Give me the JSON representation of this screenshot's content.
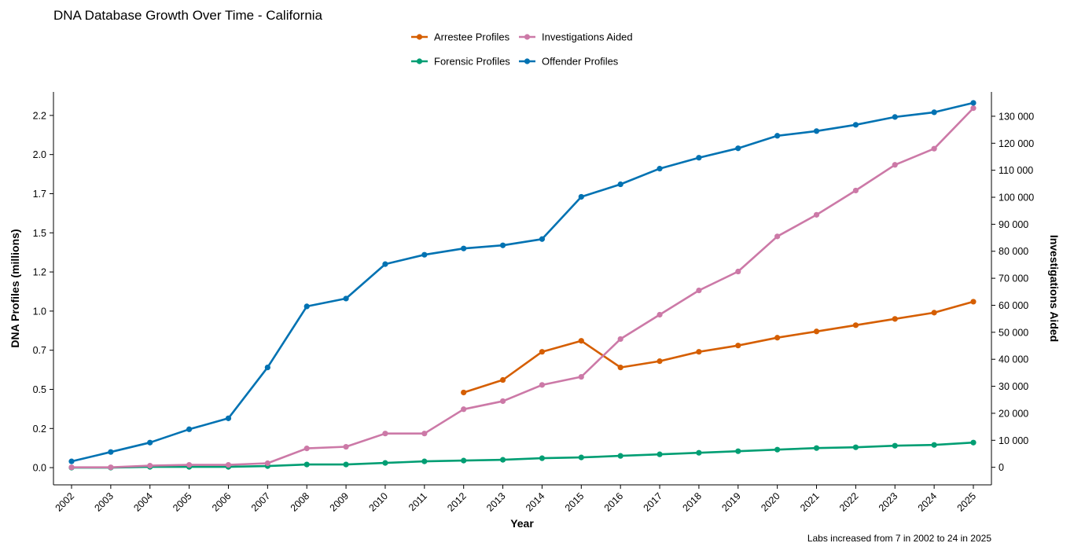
{
  "chart_data": {
    "type": "line",
    "title": "DNA Database Growth Over Time - California",
    "xlabel": "Year",
    "ylabel": "DNA Profiles (millions)",
    "y2label": "Investigations Aided",
    "caption": "Labs increased from 7 in 2002 to 24 in 2025",
    "x": [
      "2002",
      "2003",
      "2004",
      "2005",
      "2006",
      "2007",
      "2008",
      "2009",
      "2010",
      "2011",
      "2012",
      "2013",
      "2014",
      "2015",
      "2016",
      "2017",
      "2018",
      "2019",
      "2020",
      "2021",
      "2022",
      "2023",
      "2024",
      "2025"
    ],
    "ylim": [
      -0.11,
      2.4
    ],
    "y2lim": [
      -6500,
      139000
    ],
    "yticks": [
      0.0,
      0.25,
      0.5,
      0.75,
      1.0,
      1.25,
      1.5,
      1.75,
      2.0,
      2.25
    ],
    "yticklabels": [
      "0.0",
      "0.2",
      "0.5",
      "0.7",
      "1.0",
      "1.2",
      "1.5",
      "1.7",
      "2.0",
      "2.2"
    ],
    "y2ticks": [
      0,
      10000,
      20000,
      30000,
      40000,
      50000,
      60000,
      70000,
      80000,
      90000,
      100000,
      110000,
      120000,
      130000
    ],
    "y2ticklabels": [
      "0",
      "10 000",
      "20 000",
      "30 000",
      "40 000",
      "50 000",
      "60 000",
      "70 000",
      "80 000",
      "90 000",
      "100 000",
      "110 000",
      "120 000",
      "130 000"
    ],
    "legend_position": "top-center",
    "grid": false,
    "series": [
      {
        "name": "Arrestee Profiles",
        "axis": "left",
        "color": "#D55E00",
        "values": [
          null,
          null,
          null,
          null,
          null,
          null,
          null,
          null,
          null,
          null,
          0.48,
          0.56,
          0.74,
          0.81,
          0.64,
          0.68,
          0.74,
          0.78,
          0.83,
          0.87,
          0.91,
          0.95,
          0.99,
          1.06
        ]
      },
      {
        "name": "Forensic Profiles",
        "axis": "left",
        "color": "#009E73",
        "values": [
          0.0,
          0.0,
          0.005,
          0.005,
          0.005,
          0.01,
          0.02,
          0.02,
          0.03,
          0.04,
          0.045,
          0.05,
          0.06,
          0.065,
          0.075,
          0.085,
          0.095,
          0.105,
          0.115,
          0.125,
          0.13,
          0.14,
          0.145,
          0.16
        ]
      },
      {
        "name": "Investigations Aided",
        "axis": "right",
        "color": "#CC79A7",
        "values": [
          0,
          0,
          600,
          900,
          900,
          1500,
          7000,
          7600,
          12500,
          12500,
          21500,
          24500,
          30500,
          33500,
          47500,
          56500,
          65500,
          72500,
          85500,
          93500,
          102500,
          112000,
          118000,
          133000
        ]
      },
      {
        "name": "Offender Profiles",
        "axis": "left",
        "color": "#0072B2",
        "values": [
          0.04,
          0.1,
          0.16,
          0.245,
          0.315,
          0.64,
          1.03,
          1.08,
          1.3,
          1.36,
          1.4,
          1.42,
          1.46,
          1.73,
          1.81,
          1.91,
          1.98,
          2.04,
          2.12,
          2.15,
          2.19,
          2.24,
          2.27,
          2.33
        ]
      }
    ]
  }
}
